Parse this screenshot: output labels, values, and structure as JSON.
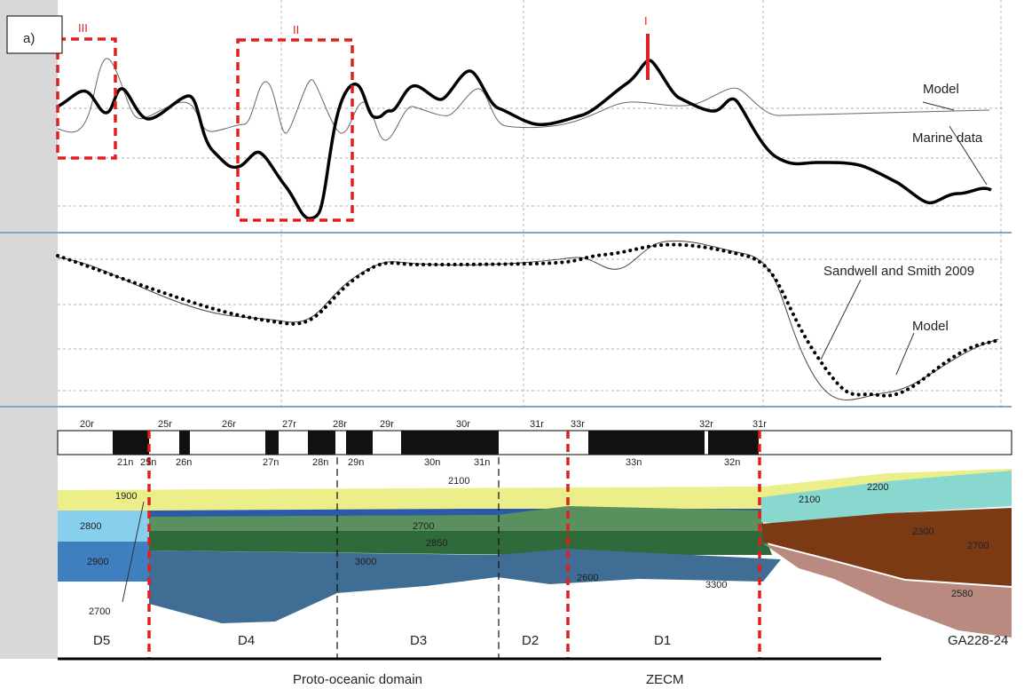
{
  "panel_label": "a)",
  "boxes": [
    "III",
    "II",
    "I"
  ],
  "curve_labels": {
    "magnetics_model": "Model",
    "marine_data": "Marine data",
    "gravity_data": "Sandwell and Smith 2009",
    "gravity_model": "Model"
  },
  "chrons_reversed": [
    "20r",
    "25r",
    "26r",
    "27r",
    "28r",
    "29r",
    "30r",
    "31r",
    "33r",
    "32r",
    "31r"
  ],
  "chrons_normal": [
    "21n",
    "25n",
    "26n",
    "27n",
    "28n",
    "29n",
    "30n",
    "31n",
    "33n",
    "32n"
  ],
  "densities": [
    "1900",
    "2800",
    "2900",
    "2700",
    "2700",
    "2850",
    "3000",
    "2100",
    "2600",
    "3300",
    "2100",
    "2200",
    "2300",
    "2700",
    "2580"
  ],
  "domains": [
    "D5",
    "D4",
    "D3",
    "D2",
    "D1"
  ],
  "profile": "GA228-24",
  "bottom_labels": [
    "Proto-oceanic domain",
    "ZECM"
  ]
}
